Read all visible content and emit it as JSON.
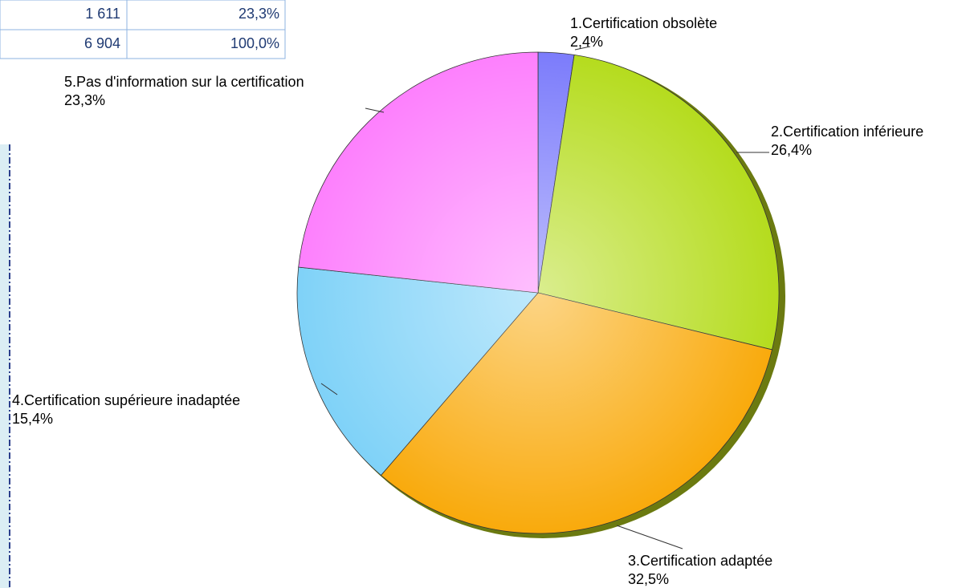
{
  "table": {
    "rows": [
      [
        "1 611",
        "23,3%"
      ],
      [
        "6 904",
        "100,0%"
      ]
    ]
  },
  "chart_data": {
    "type": "pie",
    "categories": [
      "1.Certification obsolète",
      "2.Certification inférieure",
      "3.Certification adaptée",
      "4.Certification supérieure inadaptée",
      "5.Pas d'information sur la certification"
    ],
    "values": [
      2.4,
      26.4,
      32.5,
      15.4,
      23.3
    ],
    "value_labels": [
      "2,4%",
      "26,4%",
      "32,5%",
      "15,4%",
      "23,3%"
    ],
    "colors": [
      "#7c7cfb",
      "#b5dc1e",
      "#f9aa0c",
      "#7fd2f8",
      "#fd80fd"
    ]
  }
}
